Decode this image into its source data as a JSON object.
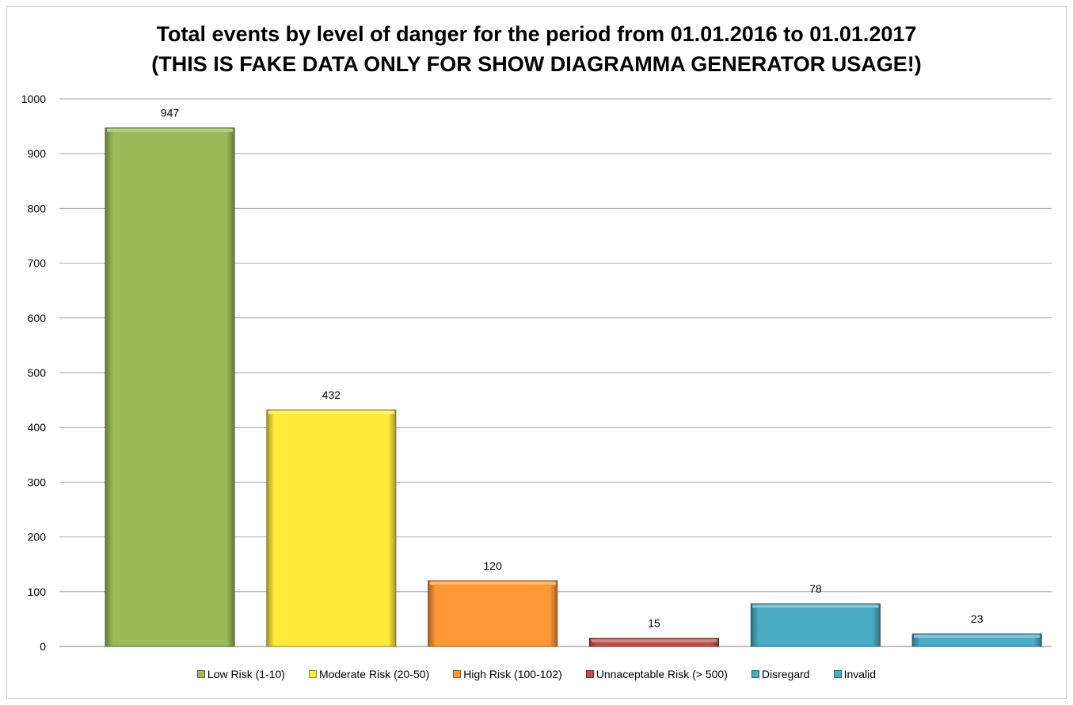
{
  "chart_data": {
    "type": "bar",
    "title": "Total events by level of danger for the period from 01.01.2016 to 01.01.2017",
    "subtitle": "(THIS IS FAKE DATA ONLY FOR SHOW DIAGRAMMA GENERATOR USAGE!)",
    "xlabel": "",
    "ylabel": "",
    "ylim": [
      0,
      1000
    ],
    "yticks": [
      "0",
      "100",
      "200",
      "300",
      "400",
      "500",
      "600",
      "700",
      "800",
      "900",
      "1000"
    ],
    "grid": true,
    "legend_position": "bottom",
    "categories": [
      "Low Risk (1-10)",
      "Moderate Risk (20-50)",
      "High Risk (100-102)",
      "Unnaceptable Risk (> 500)",
      "Disregard",
      "Invalid"
    ],
    "values": [
      947,
      432,
      120,
      15,
      78,
      23
    ],
    "data_labels": [
      "947",
      "432",
      "120",
      "15",
      "78",
      "23"
    ],
    "colors": [
      "#9bbb59",
      "#ffeb3b",
      "#ff9933",
      "#c0504d",
      "#4bacc6",
      "#4bacc6"
    ]
  }
}
